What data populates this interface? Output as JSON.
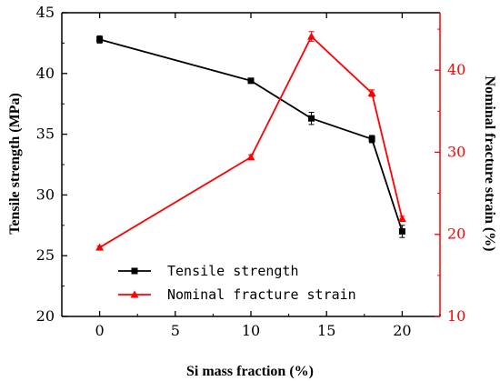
{
  "chart_data": {
    "type": "line",
    "x": [
      0,
      10,
      14,
      18,
      20
    ],
    "xlabel": "Si mass fraction (%)",
    "xlim": [
      -2.5,
      22.5
    ],
    "xticks": [
      0,
      5,
      10,
      15,
      20
    ],
    "y_left": {
      "label": "Tensile strength (MPa)",
      "lim": [
        20,
        45
      ],
      "ticks": [
        20,
        25,
        30,
        35,
        40,
        45
      ],
      "color": "#000000"
    },
    "y_right": {
      "label": "Nominal fracture strain (%)",
      "lim": [
        10,
        47
      ],
      "ticks": [
        10,
        20,
        30,
        40
      ],
      "color": "#ff0000"
    },
    "series": [
      {
        "name": "Tensile strength",
        "axis": "left",
        "marker": "square",
        "color": "#000000",
        "values": [
          42.8,
          39.4,
          36.3,
          34.6,
          27.0
        ],
        "errors": [
          0.3,
          0.1,
          0.5,
          0.3,
          0.5
        ]
      },
      {
        "name": "Nominal fracture strain",
        "axis": "right",
        "marker": "triangle",
        "color": "#ff0000",
        "values": [
          18.4,
          29.4,
          44.1,
          37.2,
          21.9
        ],
        "errors": [
          0.2,
          0.3,
          0.6,
          0.4,
          0.3
        ]
      }
    ],
    "legend_position": "lower-left",
    "grid": false
  }
}
